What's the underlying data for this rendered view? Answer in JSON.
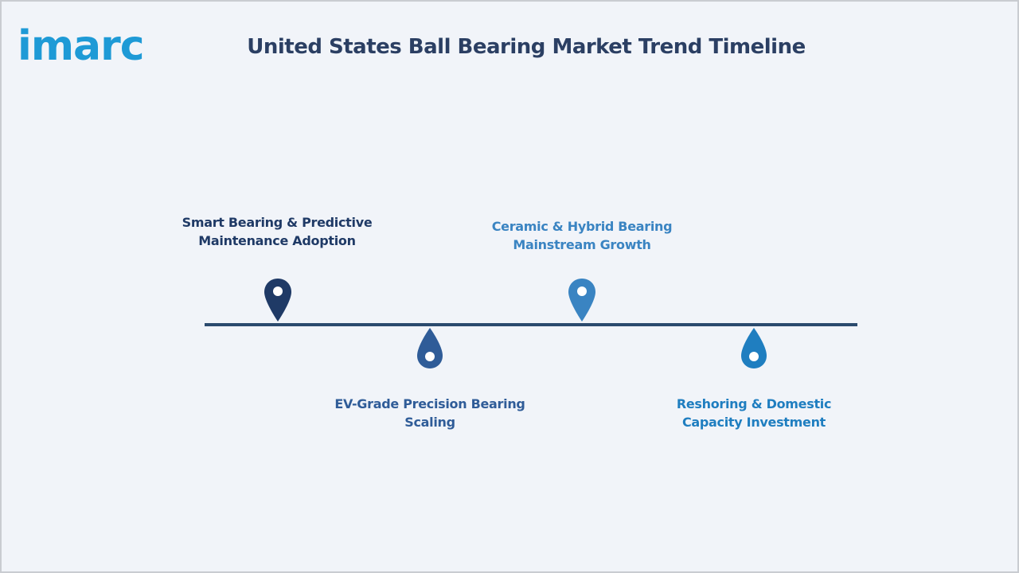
{
  "logo": {
    "text": "imarc"
  },
  "title": "United States Ball Bearing Market Trend Timeline",
  "milestones": [
    {
      "line1": "Smart Bearing & Predictive",
      "line2": "Maintenance Adoption",
      "color": "#1f3a66",
      "icon": "map-pin-icon"
    },
    {
      "line1": "EV-Grade Precision Bearing",
      "line2": "Scaling",
      "color": "#2f5c98",
      "icon": "drop-pin-icon"
    },
    {
      "line1": "Ceramic & Hybrid Bearing",
      "line2": "Mainstream Growth",
      "color": "#3a84c2",
      "icon": "map-pin-icon"
    },
    {
      "line1": "Reshoring & Domestic",
      "line2": "Capacity Investment",
      "color": "#1f7ec0",
      "icon": "drop-pin-icon"
    }
  ]
}
